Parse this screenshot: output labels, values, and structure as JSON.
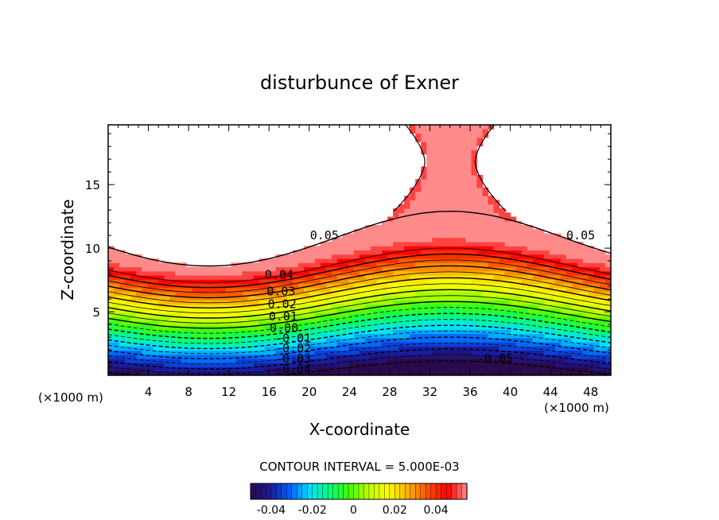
{
  "chart_data": {
    "type": "heatmap",
    "subtype": "filled-contour",
    "title": "disturbunce of Exner",
    "xlabel": "X-coordinate",
    "ylabel": "Z-coordinate",
    "x_unit_label": "(×1000 m)",
    "xlim": [
      0,
      50
    ],
    "ylim": [
      0,
      19.7
    ],
    "x_ticks": [
      4,
      8,
      12,
      16,
      20,
      24,
      28,
      32,
      36,
      40,
      44,
      48
    ],
    "y_ticks": [
      5,
      10,
      15
    ],
    "contour_interval_text": "CONTOUR INTERVAL = 5.000E-03",
    "contour_interval": 0.005,
    "value_range": [
      -0.05,
      0.055
    ],
    "negative_contours_dashed": true,
    "field_model": {
      "description_of_values": "surface value at bottom about -0.05, increasing with height, +0.05 contour near z=10 at x=0, dips to z=8.5 near x=10, rises to z=12 near x=34",
      "low_point": {
        "x": 10,
        "z_of_0_contour": 3.7
      },
      "high_point": {
        "x": 34,
        "z_of_0_contour": 5.8
      }
    },
    "contour_labels": [
      {
        "text": "0.05",
        "x": 21.5,
        "z": 10.7
      },
      {
        "text": "0.05",
        "x": 47.0,
        "z": 10.7
      },
      {
        "text": "0.04",
        "x": 17.0,
        "z": 7.6
      },
      {
        "text": "0.03",
        "x": 17.2,
        "z": 6.3
      },
      {
        "text": "0.02",
        "x": 17.3,
        "z": 5.3
      },
      {
        "text": "0.01",
        "x": 17.4,
        "z": 4.3
      },
      {
        "text": "0.00",
        "x": 17.5,
        "z": 3.4
      },
      {
        "text": "-0.01",
        "x": 18.4,
        "z": 2.6
      },
      {
        "text": "-0.02",
        "x": 18.4,
        "z": 1.8
      },
      {
        "text": "-0.03",
        "x": 18.4,
        "z": 1.0
      },
      {
        "text": "-0.04",
        "x": 18.4,
        "z": 0.2
      },
      {
        "text": "-0.05",
        "x": 38.5,
        "z": 1.0
      }
    ],
    "colorbar": {
      "ticks": [
        "-0.04",
        "-0.02",
        "0",
        "0.02",
        "0.04"
      ],
      "tick_values": [
        -0.04,
        -0.02,
        0,
        0.02,
        0.04
      ],
      "range": [
        -0.05,
        0.055
      ],
      "colormap": [
        "#2a0a4a",
        "#1a1a9a",
        "#0060ff",
        "#00e0ff",
        "#00ff80",
        "#40ff00",
        "#c0ff00",
        "#ffff00",
        "#ffb000",
        "#ff5000",
        "#ff0000",
        "#ff8a8a"
      ]
    }
  }
}
